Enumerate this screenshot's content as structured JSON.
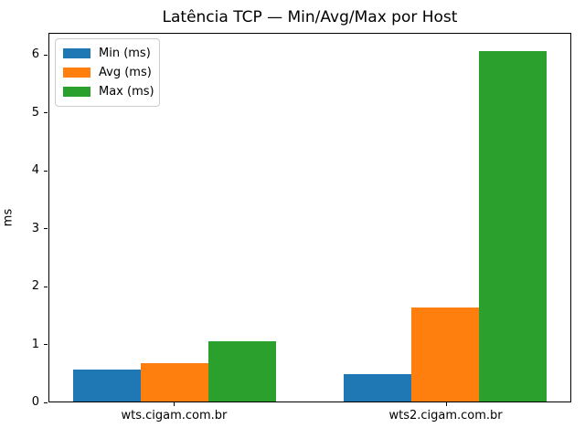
{
  "chart_data": {
    "type": "bar",
    "title": "Latência TCP — Min/Avg/Max por Host",
    "xlabel": "",
    "ylabel": "ms",
    "categories": [
      "wts.cigam.com.br",
      "wts2.cigam.com.br"
    ],
    "series": [
      {
        "name": "Min (ms)",
        "color": "#1f77b4",
        "values": [
          0.55,
          0.47
        ]
      },
      {
        "name": "Avg (ms)",
        "color": "#ff7f0e",
        "values": [
          0.67,
          1.63
        ]
      },
      {
        "name": "Max (ms)",
        "color": "#2ca02c",
        "values": [
          1.04,
          6.08
        ]
      }
    ],
    "ylim": [
      0,
      6.38
    ],
    "yticks": [
      0,
      1,
      2,
      3,
      4,
      5,
      6
    ],
    "xlim": [
      -0.4625,
      1.4625
    ],
    "bar_width": 0.25,
    "grid": false,
    "legend": {
      "position": "upper left"
    },
    "background_color": "#ffffff",
    "spine_color": "#000000"
  }
}
